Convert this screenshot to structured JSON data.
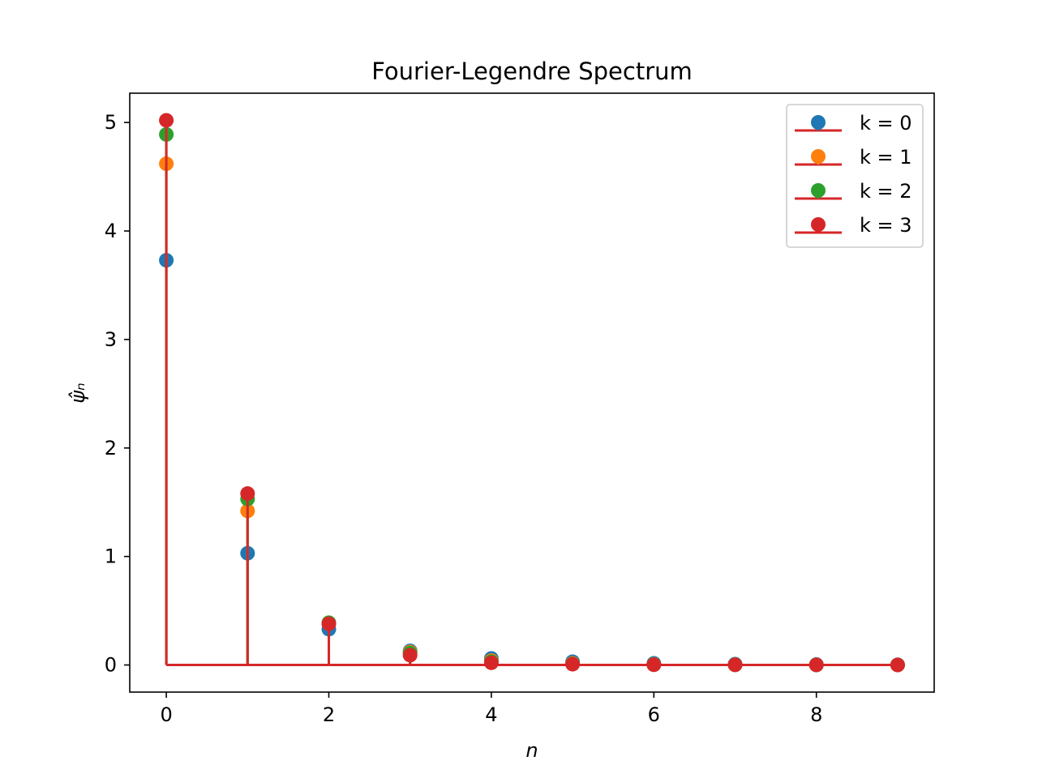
{
  "chart_data": {
    "type": "stem",
    "title": "Fourier-Legendre Spectrum",
    "xlabel": "n",
    "ylabel": "ψ̂ₙ",
    "xlim": [
      -0.45,
      9.45
    ],
    "ylim": [
      -0.25,
      5.27
    ],
    "xticks": [
      0,
      2,
      4,
      6,
      8
    ],
    "yticks": [
      0,
      1,
      2,
      3,
      4,
      5
    ],
    "grid": false,
    "legend_position": "top-right",
    "x": [
      0,
      1,
      2,
      3,
      4,
      5,
      6,
      7,
      8,
      9
    ],
    "series": [
      {
        "name": "k = 0",
        "color": "#1f77b4",
        "values": [
          3.73,
          1.03,
          0.33,
          0.13,
          0.06,
          0.03,
          0.015,
          0.008,
          0.004,
          0.002
        ]
      },
      {
        "name": "k = 1",
        "color": "#ff7f0e",
        "values": [
          4.62,
          1.42,
          0.38,
          0.12,
          0.04,
          0.015,
          0.006,
          0.003,
          0.001,
          0.0005
        ]
      },
      {
        "name": "k = 2",
        "color": "#2ca02c",
        "values": [
          4.89,
          1.53,
          0.39,
          0.11,
          0.03,
          0.01,
          0.004,
          0.002,
          0.001,
          0.0004
        ]
      },
      {
        "name": "k = 3",
        "color": "#d62728",
        "values": [
          5.02,
          1.58,
          0.38,
          0.09,
          0.02,
          0.007,
          0.002,
          0.001,
          0.0004,
          0.0002
        ]
      }
    ]
  }
}
